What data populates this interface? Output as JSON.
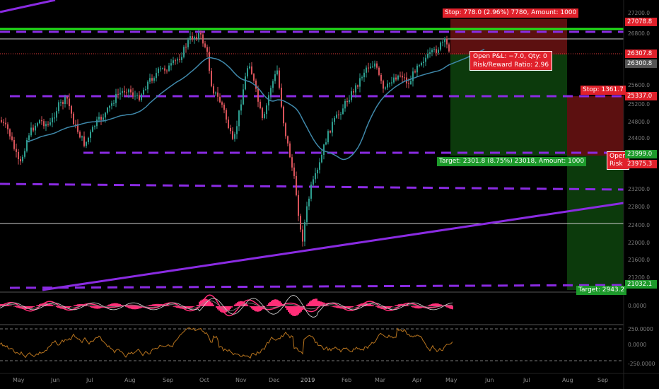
{
  "colors": {
    "background": "#000000",
    "up_candle": "#2e9e8f",
    "down_candle": "#d9535a",
    "purple_level": "#8a2be2",
    "green_level": "#22e01a",
    "ma_line": "#3f88aa",
    "stop_zone": "#5c1010",
    "target_zone": "#0c3a0c",
    "tag_red": "#e0212b",
    "tag_green": "#1d9a2b",
    "macd_pink": "#ff2e77",
    "rsi_line": "#b8741e"
  },
  "price_scale": {
    "ticks": [
      "27200.0",
      "26800.0",
      "25600.0",
      "25200.0",
      "24800.0",
      "24400.0",
      "23200.0",
      "22800.0",
      "22400.0",
      "22000.0",
      "21600.0",
      "21200.0"
    ],
    "levels": {
      "green": "27078.8",
      "last_red": "26307.8",
      "last_grey": "26300.8",
      "purple_2": "25337.0",
      "target_1": "23999.0",
      "stop_2_price": "23975.3",
      "purple_low": "21032.1"
    }
  },
  "position_1": {
    "stop_label": "Stop: 778.0 (2.96%) 7780, Amount: 1000",
    "pnl_label": "Open P&L: −7.0, Qty: 0",
    "rr_label": "Risk/Reward Ratio: 2.96",
    "target_label": "Target: 2301.8 (8.75%) 23018, Amount: 1000"
  },
  "position_2": {
    "stop_label": "Stop: 1361.7",
    "open_label": "Open",
    "risk_label": "Risk",
    "target_label": "Target: 2943.2"
  },
  "indicator_1": {
    "ticks": [
      "0.0000"
    ]
  },
  "indicator_2": {
    "ticks": [
      "250.0000",
      "0.0000",
      "-250.0000"
    ]
  },
  "time_axis": [
    "May",
    "Jun",
    "Jul",
    "Aug",
    "Sep",
    "Oct",
    "Nov",
    "Dec",
    "2019",
    "Feb",
    "Mar",
    "Apr",
    "May",
    "Jun",
    "Jul",
    "Aug",
    "Sep"
  ]
}
